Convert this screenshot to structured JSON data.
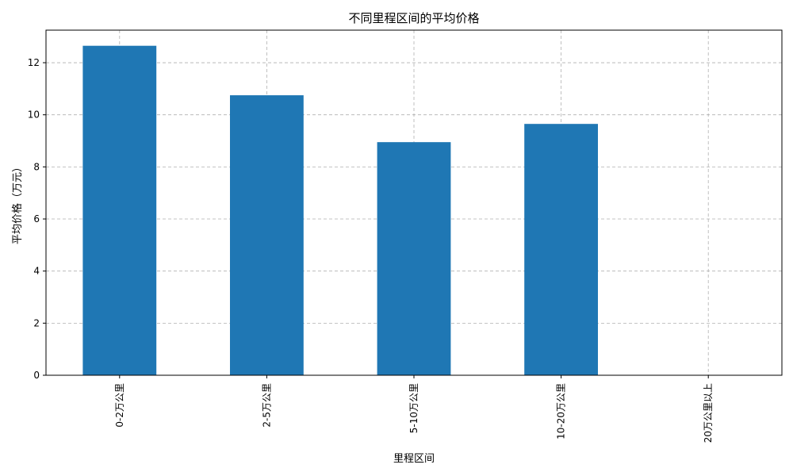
{
  "chart_data": {
    "type": "bar",
    "title": "不同里程区间的平均价格",
    "xlabel": "里程区间",
    "ylabel": "平均价格（万元）",
    "categories": [
      "0-2万公里",
      "2-5万公里",
      "5-10万公里",
      "10-20万公里",
      "20万公里以上"
    ],
    "values": [
      12.65,
      10.75,
      8.95,
      9.65,
      0
    ],
    "ylim": [
      0,
      13.25
    ],
    "yticks": [
      0,
      2,
      4,
      6,
      8,
      10,
      12
    ],
    "grid": true,
    "bar_color": "#1f77b4",
    "grid_color": "#b0b0b0"
  }
}
